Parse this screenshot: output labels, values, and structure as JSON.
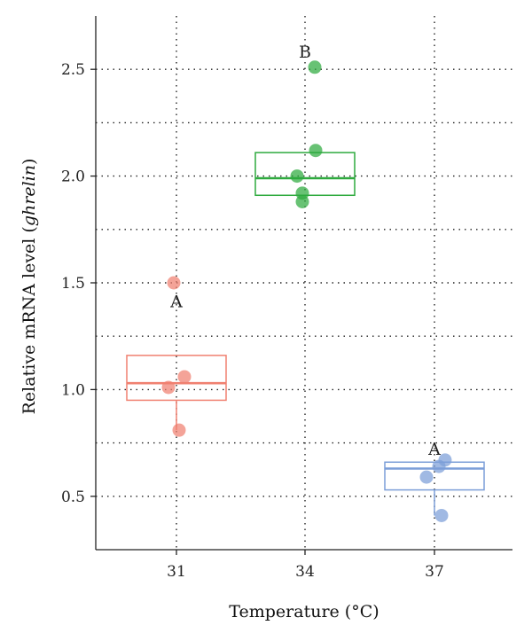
{
  "chart_data": {
    "type": "box-with-points",
    "xlabel": "Temperature (°C)",
    "ylabel_prefix": "Relative mRNA level (",
    "ylabel_italic": "ghrelin",
    "ylabel_suffix": ")",
    "categories": [
      "31",
      "34",
      "37"
    ],
    "ylim": [
      0.25,
      2.75
    ],
    "yticks": [
      0.5,
      1.0,
      1.5,
      2.0,
      2.5
    ],
    "ytick_labels": [
      "0.5",
      "1.0",
      "1.5",
      "2.0",
      "2.5"
    ],
    "y_minor_grid": [
      0.75,
      1.25,
      1.75,
      2.25
    ],
    "grid": true,
    "groups": [
      {
        "category": "31",
        "color": "#f08070",
        "letter": "A",
        "letter_y": 1.41,
        "box": {
          "q1": 0.95,
          "median": 1.03,
          "q3": 1.16,
          "whisker_low": 0.81,
          "whisker_high": 1.16
        },
        "points": [
          {
            "x_offset": -0.15,
            "y": 1.5
          },
          {
            "x_offset": -0.45,
            "y": 1.01
          },
          {
            "x_offset": 0.45,
            "y": 1.06
          },
          {
            "x_offset": 0.15,
            "y": 0.81
          }
        ]
      },
      {
        "category": "34",
        "color": "#2eaa3e",
        "letter": "B",
        "letter_y": 2.58,
        "box": {
          "q1": 1.91,
          "median": 1.99,
          "q3": 2.11,
          "whisker_low": 1.91,
          "whisker_high": 2.11
        },
        "points": [
          {
            "x_offset": 0.55,
            "y": 2.51
          },
          {
            "x_offset": 0.6,
            "y": 2.12
          },
          {
            "x_offset": -0.45,
            "y": 2.0
          },
          {
            "x_offset": -0.15,
            "y": 1.92
          },
          {
            "x_offset": -0.15,
            "y": 1.88
          }
        ]
      },
      {
        "category": "37",
        "color": "#7b9ed8",
        "letter": "A",
        "letter_y": 0.72,
        "box": {
          "q1": 0.53,
          "median": 0.63,
          "q3": 0.66,
          "whisker_low": 0.41,
          "whisker_high": 0.66
        },
        "points": [
          {
            "x_offset": 0.6,
            "y": 0.67
          },
          {
            "x_offset": 0.25,
            "y": 0.64
          },
          {
            "x_offset": -0.45,
            "y": 0.59
          },
          {
            "x_offset": 0.4,
            "y": 0.41
          }
        ]
      }
    ]
  }
}
